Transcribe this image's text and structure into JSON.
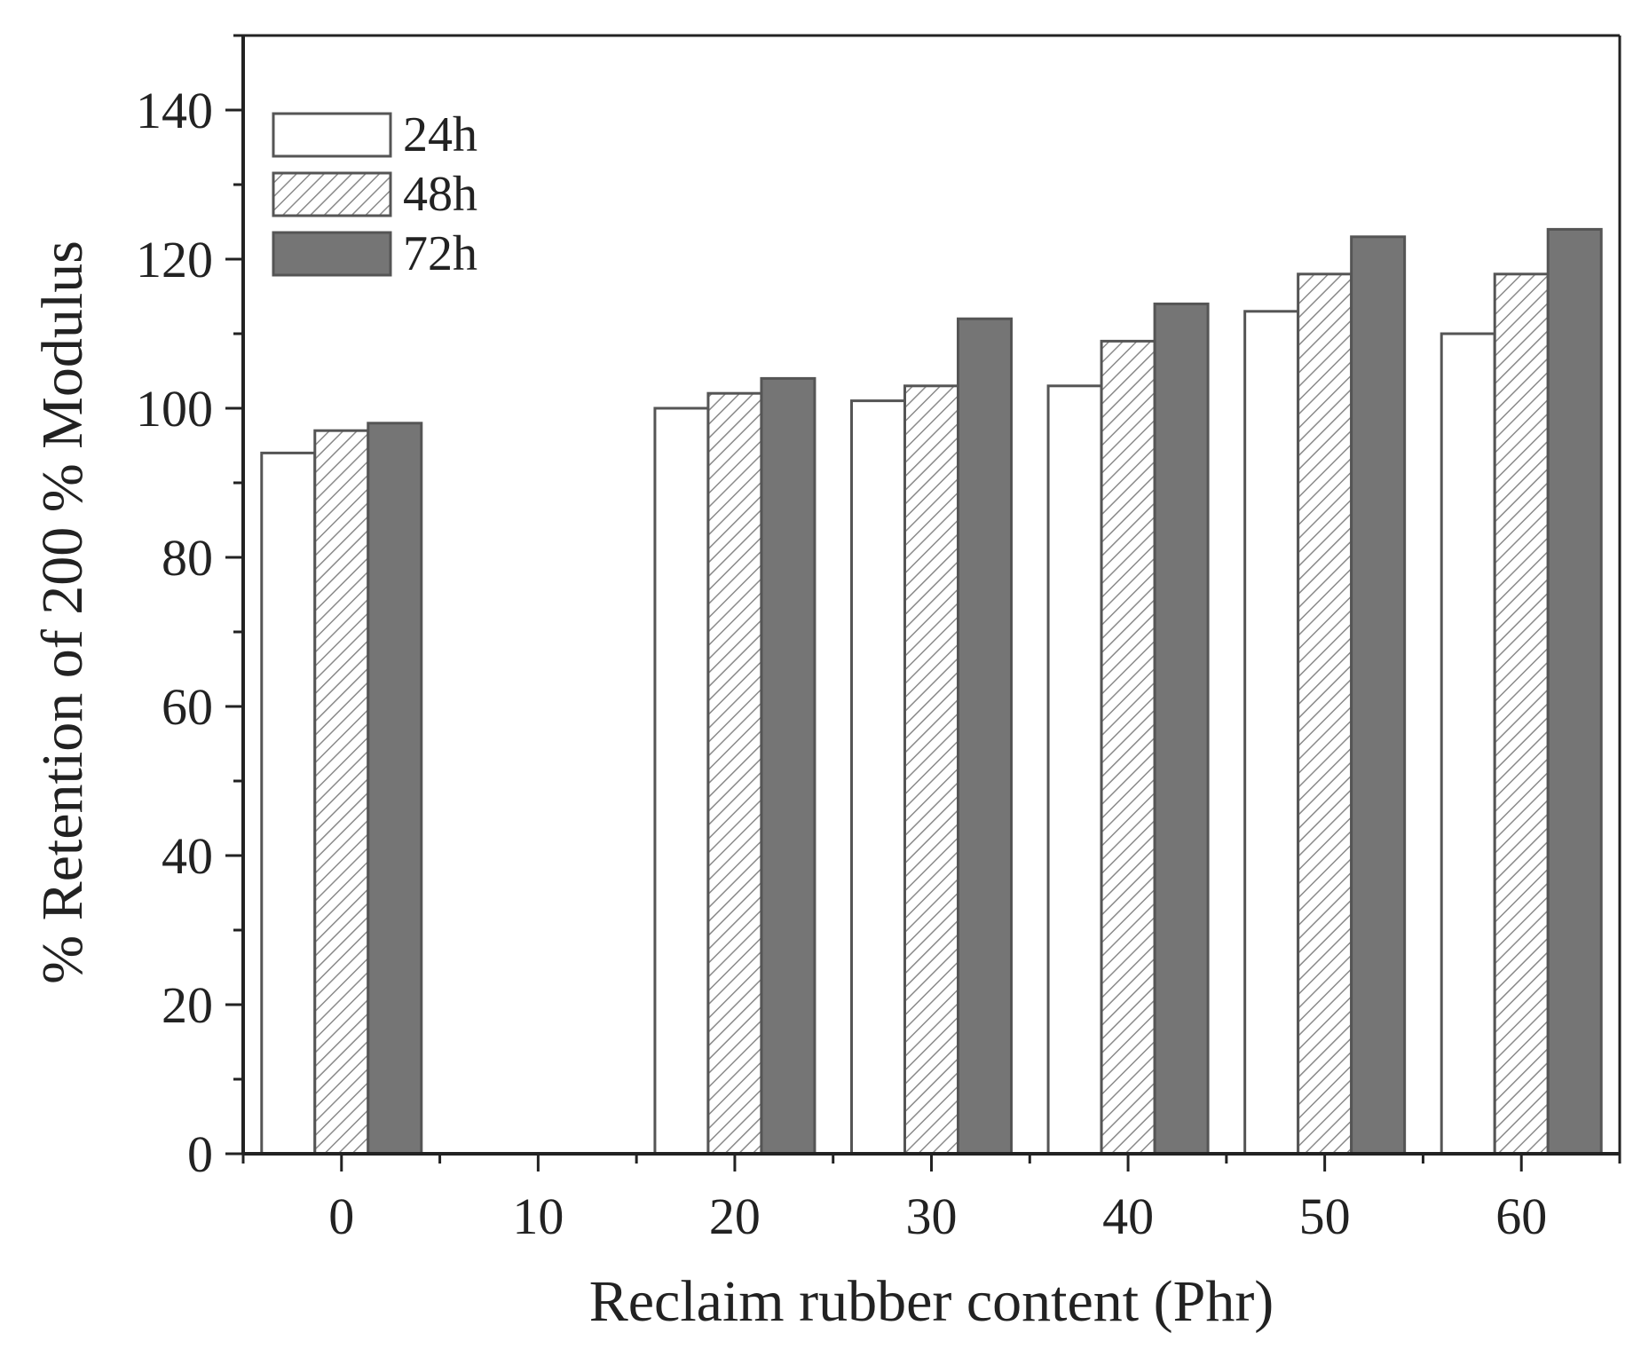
{
  "chart_data": {
    "type": "bar",
    "xlabel": "Reclaim rubber content (Phr)",
    "ylabel": "% Retention of 200 % Modulus",
    "categories": [
      "0",
      "10",
      "20",
      "30",
      "40",
      "50",
      "60"
    ],
    "series": [
      {
        "name": "24h",
        "values": [
          94,
          null,
          100,
          101,
          103,
          113,
          110
        ],
        "fill": "#ffffff",
        "pattern": "none"
      },
      {
        "name": "48h",
        "values": [
          97,
          null,
          102,
          103,
          109,
          118,
          118
        ],
        "fill": "#ffffff",
        "pattern": "diagonal-hatch"
      },
      {
        "name": "72h",
        "values": [
          98,
          null,
          104,
          112,
          114,
          123,
          124
        ],
        "fill": "#757575",
        "pattern": "none"
      }
    ],
    "ylim": [
      0,
      150
    ],
    "yticks": [
      0,
      20,
      40,
      60,
      80,
      100,
      120,
      140
    ],
    "xlim": [
      -5,
      65
    ],
    "xticks": [
      0,
      10,
      20,
      30,
      40,
      50,
      60
    ],
    "legend_position": "top-left",
    "grid": false,
    "colors": {
      "axis": "#222222",
      "bar_edge": "#555555",
      "hatch": "#888888"
    }
  }
}
